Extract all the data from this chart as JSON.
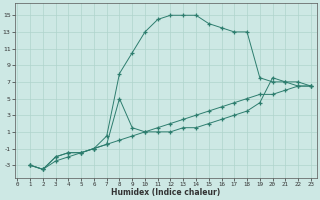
{
  "xlabel": "Humidex (Indice chaleur)",
  "bg_color": "#cde8e4",
  "grid_color": "#b0d4cc",
  "line_color": "#2d7d6e",
  "line1_x": [
    1,
    2,
    3,
    4,
    5,
    6,
    7,
    8,
    9,
    10,
    11,
    12,
    13,
    14,
    15,
    16,
    17,
    18,
    19,
    20,
    21,
    22,
    23
  ],
  "line1_y": [
    -3,
    -3.5,
    -2.5,
    -2,
    -1.5,
    -1,
    0.5,
    8,
    10.5,
    13,
    14.5,
    15,
    15,
    15,
    14,
    13.5,
    13,
    13,
    7.5,
    7,
    7,
    6.5,
    6.5
  ],
  "line2_x": [
    1,
    2,
    3,
    4,
    5,
    6,
    7,
    8,
    9,
    10,
    11,
    12,
    13,
    14,
    15,
    16,
    17,
    18,
    19,
    20,
    21,
    22,
    23
  ],
  "line2_y": [
    -3,
    -3.5,
    -2,
    -1.5,
    -1.5,
    -1,
    -0.5,
    5,
    1.5,
    1,
    1,
    1,
    1.5,
    1.5,
    2,
    2.5,
    3,
    3.5,
    4.5,
    7.5,
    7,
    7,
    6.5
  ],
  "line3_x": [
    1,
    2,
    3,
    4,
    5,
    6,
    7,
    8,
    9,
    10,
    11,
    12,
    13,
    14,
    15,
    16,
    17,
    18,
    19,
    20,
    21,
    22,
    23
  ],
  "line3_y": [
    -3,
    -3.5,
    -2,
    -1.5,
    -1.5,
    -1,
    -0.5,
    0,
    0.5,
    1,
    1.5,
    2,
    2.5,
    3,
    3.5,
    4,
    4.5,
    5,
    5.5,
    5.5,
    6,
    6.5,
    6.5
  ],
  "xlim": [
    -0.2,
    23.5
  ],
  "ylim": [
    -4.5,
    16.5
  ],
  "xticks": [
    0,
    1,
    2,
    3,
    4,
    5,
    6,
    7,
    8,
    9,
    10,
    11,
    12,
    13,
    14,
    15,
    16,
    17,
    18,
    19,
    20,
    21,
    22,
    23
  ],
  "yticks": [
    -3,
    -1,
    1,
    3,
    5,
    7,
    9,
    11,
    13,
    15
  ]
}
